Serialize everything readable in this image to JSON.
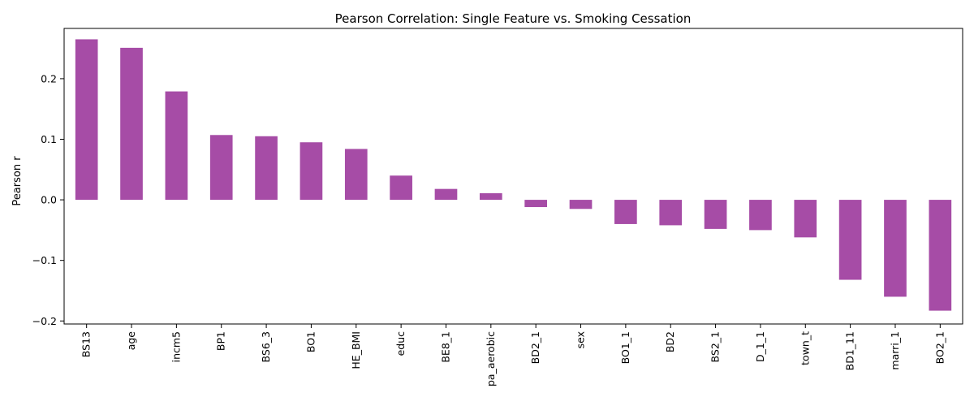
{
  "chart_data": {
    "type": "bar",
    "title": "Pearson Correlation: Single Feature vs. Smoking Cessation",
    "xlabel": "",
    "ylabel": "Pearson r",
    "categories": [
      "BS13",
      "age",
      "incm5",
      "BP1",
      "BS6_3",
      "BO1",
      "HE_BMI",
      "educ",
      "BE8_1",
      "pa_aerobic",
      "BD2_1",
      "sex",
      "BO1_1",
      "BD2",
      "BS2_1",
      "D_1_1",
      "town_t",
      "BD1_11",
      "marri_1",
      "BO2_1"
    ],
    "values": [
      0.265,
      0.251,
      0.179,
      0.107,
      0.105,
      0.095,
      0.084,
      0.04,
      0.018,
      0.011,
      -0.012,
      -0.015,
      -0.04,
      -0.042,
      -0.048,
      -0.05,
      -0.062,
      -0.132,
      -0.16,
      -0.183
    ],
    "ylim": [
      -0.2,
      0.3
    ],
    "yticks": [
      -0.2,
      -0.1,
      0.0,
      0.1,
      0.2
    ],
    "ytick_labels": [
      "−0.2",
      "−0.1",
      "0.0",
      "0.1",
      "0.2"
    ],
    "bar_color": "#a64ca6",
    "grid": false,
    "legend": "none"
  }
}
